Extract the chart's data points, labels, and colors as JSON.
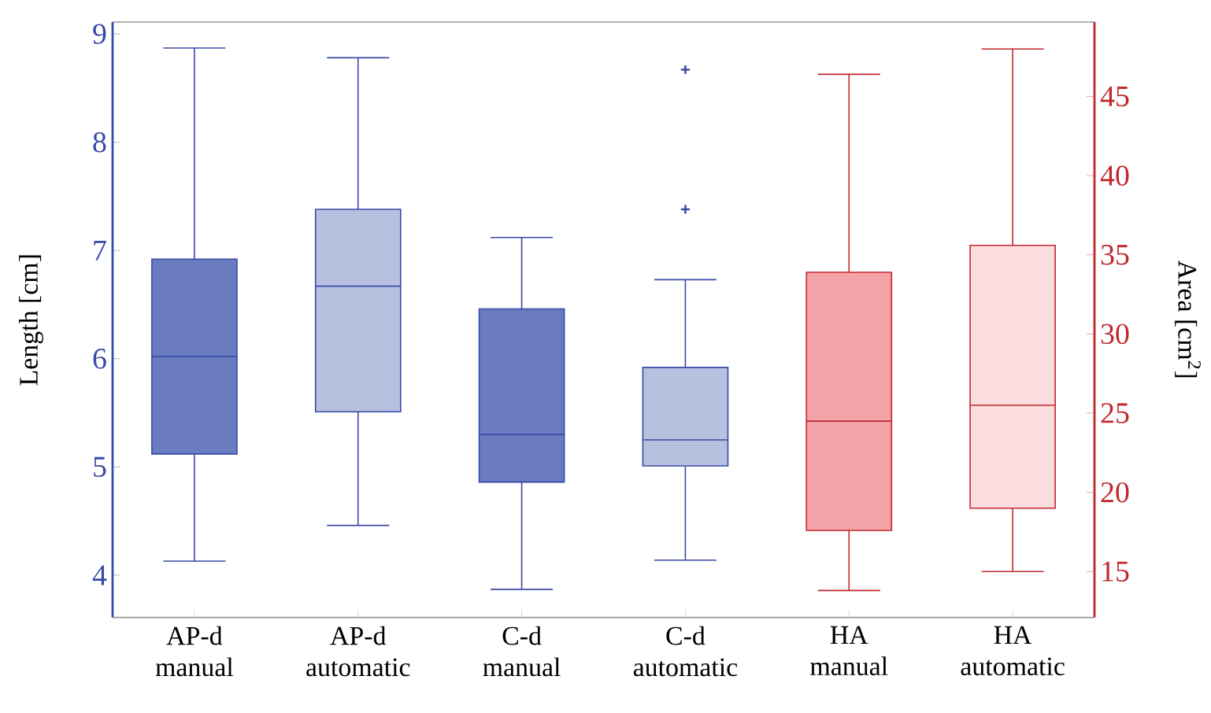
{
  "chart_data": {
    "type": "box",
    "categories": [
      "AP-d manual",
      "AP-d automatic",
      "C-d manual",
      "C-d automatic",
      "HA manual",
      "HA automatic"
    ],
    "ylabel": "Length [cm]",
    "y2label": "Area [cm$^{2}$]",
    "ylim": [
      3.61,
      9.11
    ],
    "yticks": [
      4,
      5,
      6,
      7,
      8,
      9
    ],
    "y2lim": [
      12.1,
      49.7
    ],
    "y2ticks": [
      15,
      20,
      25,
      30,
      35,
      40,
      45
    ],
    "marker": "cross",
    "series": [
      {
        "axis": "y",
        "color": "#3a4aa8",
        "colors": [
          "#6a7bbf",
          "#b8c0e0",
          "#6a7bbf",
          "#b8c0e0",
          null,
          null
        ],
        "boxes": [
          {
            "low": 4.13,
            "q1": 5.12,
            "median": 6.02,
            "q3": 6.92,
            "high": 8.87
          },
          {
            "low": 4.46,
            "q1": 5.51,
            "median": 6.67,
            "q3": 7.38,
            "high": 8.78
          },
          {
            "low": 3.87,
            "q1": 4.86,
            "median": 5.3,
            "q3": 6.46,
            "high": 7.12
          },
          {
            "low": 4.14,
            "q1": 5.01,
            "median": 5.25,
            "q3": 5.92,
            "high": 6.73,
            "outliers": [
              8.67,
              7.38
            ]
          },
          null,
          null
        ]
      },
      {
        "axis": "y2",
        "color": "#c0282d",
        "colors": [
          null,
          null,
          null,
          null,
          "#f4a3a8",
          "#fbdde0"
        ],
        "boxes": [
          null,
          null,
          null,
          null,
          {
            "low": 13.8,
            "q1": 17.6,
            "median": 24.5,
            "q3": 33.9,
            "high": 46.4
          },
          {
            "low": 15.0,
            "q1": 19.0,
            "median": 25.5,
            "q3": 35.6,
            "high": 48.0
          }
        ]
      }
    ]
  }
}
